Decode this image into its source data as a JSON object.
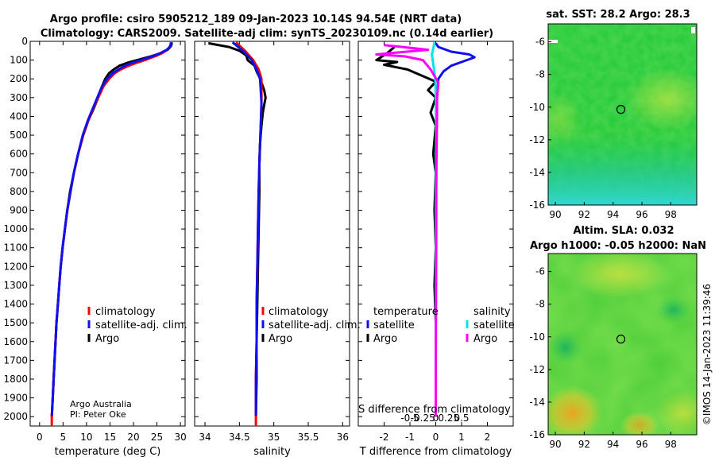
{
  "titles": {
    "line1": "Argo profile: csiro 5905212_189 09-Jan-2023 10.14S 94.54E (NRT data)",
    "line2": "Climatology: CARS2009. Satellite-adj clim: synTS_20230109.nc (0.14d earlier)"
  },
  "credit": {
    "line1": "Argo Australia",
    "line2": "PI: Peter Oke"
  },
  "watermark": "©IMOS 14-Jan-2023 11:39:46",
  "colors": {
    "climatology": "#ff0000",
    "satellite": "#1010ee",
    "argo": "#000000",
    "sat_sal": "#00e5e5",
    "argo_sal": "#ff00ff"
  },
  "chart_data": [
    {
      "type": "line",
      "id": "temperature",
      "xlabel": "temperature (deg C)",
      "ylabel": "",
      "xlim": [
        -2,
        31
      ],
      "ylim": [
        0,
        2050
      ],
      "xticks": [
        0,
        5,
        10,
        15,
        20,
        25,
        30
      ],
      "xtick_labels": [
        "0",
        "5",
        "10",
        "15",
        "20",
        "25",
        "30"
      ],
      "yticks": [
        0,
        100,
        200,
        300,
        400,
        500,
        600,
        700,
        800,
        900,
        1000,
        1100,
        1200,
        1300,
        1400,
        1500,
        1600,
        1700,
        1800,
        1900,
        2000
      ],
      "ytick_labels": [
        "0",
        "100",
        "200",
        "300",
        "400",
        "500",
        "600",
        "700",
        "800",
        "900",
        "1000",
        "1100",
        "1200",
        "1300",
        "1400",
        "1500",
        "1600",
        "1700",
        "1800",
        "1900",
        "2000"
      ],
      "legend": [
        "climatology",
        "satellite-adj. clim.",
        "Argo"
      ],
      "series": [
        {
          "name": "Argo",
          "color": "#000000",
          "points": [
            [
              28.2,
              5
            ],
            [
              28.0,
              25
            ],
            [
              27.3,
              45
            ],
            [
              26.0,
              62
            ],
            [
              24.0,
              78
            ],
            [
              21.5,
              95
            ],
            [
              19.0,
              112
            ],
            [
              17.0,
              130
            ],
            [
              15.8,
              150
            ],
            [
              14.8,
              170
            ],
            [
              14.0,
              200
            ],
            [
              13.3,
              240
            ],
            [
              12.5,
              300
            ],
            [
              11.5,
              360
            ],
            [
              10.4,
              420
            ],
            [
              9.3,
              500
            ],
            [
              8.2,
              600
            ],
            [
              7.3,
              700
            ],
            [
              6.5,
              800
            ],
            [
              5.9,
              900
            ],
            [
              5.4,
              1000
            ],
            [
              4.9,
              1100
            ],
            [
              4.5,
              1200
            ],
            [
              4.2,
              1300
            ],
            [
              3.9,
              1400
            ],
            [
              3.6,
              1500
            ],
            [
              3.4,
              1600
            ],
            [
              3.2,
              1700
            ],
            [
              3.0,
              1800
            ],
            [
              2.8,
              1900
            ],
            [
              2.6,
              2000
            ]
          ]
        },
        {
          "name": "climatology",
          "color": "#ff0000",
          "points": [
            [
              28.0,
              5
            ],
            [
              27.8,
              25
            ],
            [
              27.2,
              45
            ],
            [
              26.2,
              62
            ],
            [
              24.8,
              78
            ],
            [
              23.0,
              95
            ],
            [
              21.0,
              112
            ],
            [
              19.0,
              130
            ],
            [
              17.3,
              150
            ],
            [
              16.0,
              170
            ],
            [
              14.8,
              200
            ],
            [
              13.6,
              240
            ],
            [
              12.5,
              300
            ],
            [
              11.4,
              360
            ],
            [
              10.4,
              420
            ],
            [
              9.3,
              500
            ],
            [
              8.2,
              600
            ],
            [
              7.3,
              700
            ],
            [
              6.6,
              800
            ],
            [
              5.9,
              900
            ],
            [
              5.4,
              1000
            ],
            [
              4.9,
              1100
            ],
            [
              4.5,
              1200
            ],
            [
              4.2,
              1300
            ],
            [
              3.9,
              1400
            ],
            [
              3.6,
              1500
            ],
            [
              3.4,
              1600
            ],
            [
              3.2,
              1700
            ],
            [
              3.0,
              1800
            ],
            [
              2.8,
              1900
            ],
            [
              2.6,
              2000
            ]
          ]
        },
        {
          "name": "satellite-adj. clim.",
          "color": "#1010ee",
          "points": [
            [
              28.1,
              5
            ],
            [
              27.9,
              25
            ],
            [
              27.1,
              45
            ],
            [
              25.8,
              62
            ],
            [
              24.2,
              78
            ],
            [
              22.2,
              95
            ],
            [
              20.0,
              112
            ],
            [
              18.2,
              130
            ],
            [
              16.8,
              150
            ],
            [
              15.6,
              170
            ],
            [
              14.4,
              200
            ],
            [
              13.3,
              240
            ],
            [
              12.3,
              300
            ],
            [
              11.3,
              360
            ],
            [
              10.3,
              420
            ],
            [
              9.2,
              500
            ],
            [
              8.2,
              600
            ],
            [
              7.3,
              700
            ],
            [
              6.6,
              800
            ],
            [
              5.9,
              900
            ],
            [
              5.4,
              1000
            ],
            [
              4.9,
              1100
            ],
            [
              4.5,
              1200
            ],
            [
              4.2,
              1300
            ],
            [
              3.9,
              1400
            ],
            [
              3.6,
              1500
            ],
            [
              3.4,
              1600
            ],
            [
              3.2,
              1700
            ],
            [
              3.0,
              1800
            ],
            [
              2.8,
              1900
            ],
            [
              2.6,
              2000
            ]
          ]
        }
      ]
    },
    {
      "type": "line",
      "id": "salinity",
      "xlabel": "salinity",
      "xlim": [
        33.85,
        36.1
      ],
      "ylim": [
        0,
        2050
      ],
      "xticks": [
        34,
        34.5,
        35,
        35.5,
        36
      ],
      "xtick_labels": [
        "34",
        "34.5",
        "35",
        "35.5",
        "36"
      ],
      "legend": [
        "climatology",
        "satellite-adj. clim.",
        "Argo"
      ],
      "series": [
        {
          "name": "Argo",
          "color": "#000000",
          "points": [
            [
              34.05,
              10
            ],
            [
              34.35,
              30
            ],
            [
              34.5,
              50
            ],
            [
              34.6,
              75
            ],
            [
              34.62,
              100
            ],
            [
              34.72,
              130
            ],
            [
              34.75,
              160
            ],
            [
              34.79,
              190
            ],
            [
              34.82,
              220
            ],
            [
              34.86,
              260
            ],
            [
              34.88,
              300
            ],
            [
              34.86,
              340
            ],
            [
              34.84,
              380
            ],
            [
              34.82,
              450
            ],
            [
              34.8,
              550
            ],
            [
              34.79,
              650
            ],
            [
              34.79,
              800
            ],
            [
              34.78,
              1000
            ],
            [
              34.77,
              1200
            ],
            [
              34.76,
              1400
            ],
            [
              34.75,
              1600
            ],
            [
              34.75,
              1800
            ],
            [
              34.74,
              2000
            ]
          ]
        },
        {
          "name": "climatology",
          "color": "#ff0000",
          "points": [
            [
              34.45,
              5
            ],
            [
              34.58,
              50
            ],
            [
              34.7,
              100
            ],
            [
              34.78,
              150
            ],
            [
              34.82,
              200
            ],
            [
              34.82,
              260
            ],
            [
              34.82,
              330
            ],
            [
              34.81,
              450
            ],
            [
              34.8,
              550
            ],
            [
              34.79,
              650
            ],
            [
              34.78,
              800
            ],
            [
              34.77,
              1000
            ],
            [
              34.76,
              1200
            ],
            [
              34.75,
              1400
            ],
            [
              34.75,
              1600
            ],
            [
              34.74,
              1800
            ],
            [
              34.74,
              2000
            ]
          ]
        },
        {
          "name": "satellite-adj. clim.",
          "color": "#1010ee",
          "points": [
            [
              34.4,
              5
            ],
            [
              34.55,
              50
            ],
            [
              34.68,
              100
            ],
            [
              34.75,
              150
            ],
            [
              34.8,
              200
            ],
            [
              34.81,
              260
            ],
            [
              34.82,
              330
            ],
            [
              34.81,
              450
            ],
            [
              34.8,
              550
            ],
            [
              34.79,
              650
            ],
            [
              34.78,
              800
            ],
            [
              34.77,
              1000
            ],
            [
              34.76,
              1200
            ],
            [
              34.75,
              1400
            ],
            [
              34.75,
              1600
            ],
            [
              34.74,
              1800
            ],
            [
              34.74,
              2000
            ]
          ]
        }
      ]
    },
    {
      "type": "line",
      "id": "difference",
      "xlabel": "T difference from climatology",
      "xlabel2": "S difference from climatology",
      "xlim": [
        -3,
        3
      ],
      "ylim": [
        0,
        2050
      ],
      "xticks": [
        -2,
        -1,
        0,
        1,
        2
      ],
      "xtick_labels": [
        "-2",
        "-1",
        "0",
        "1",
        "2"
      ],
      "s_ticks": [
        -0.5,
        -0.25,
        0,
        0.25,
        0.5
      ],
      "s_tick_labels": [
        "-0.5",
        "-0.25",
        "0",
        "0.25",
        "0.5"
      ],
      "legend_headers": [
        "temperature",
        "salinity"
      ],
      "legend": [
        "satellite",
        "Argo",
        "satellite",
        "Argo"
      ],
      "series": [
        {
          "name": "T satellite",
          "color": "#1010ee",
          "points": [
            [
              0,
              10
            ],
            [
              0.1,
              30
            ],
            [
              0.6,
              55
            ],
            [
              1.3,
              70
            ],
            [
              1.5,
              85
            ],
            [
              1.0,
              110
            ],
            [
              0.6,
              130
            ],
            [
              0.3,
              160
            ],
            [
              0.1,
              200
            ],
            [
              0.05,
              300
            ],
            [
              0,
              500
            ],
            [
              0,
              1000
            ],
            [
              0,
              2000
            ]
          ]
        },
        {
          "name": "T Argo",
          "color": "#000000",
          "points": [
            [
              -1.6,
              30
            ],
            [
              -1.9,
              65
            ],
            [
              -2.3,
              100
            ],
            [
              -1.5,
              110
            ],
            [
              -2.0,
              125
            ],
            [
              -1.1,
              150
            ],
            [
              -0.5,
              185
            ],
            [
              0,
              215
            ],
            [
              -0.3,
              260
            ],
            [
              0,
              300
            ],
            [
              -0.2,
              380
            ],
            [
              0,
              450
            ],
            [
              -0.1,
              600
            ],
            [
              0,
              700
            ],
            [
              -0.05,
              900
            ],
            [
              0,
              1100
            ],
            [
              -0.05,
              1300
            ],
            [
              0,
              1500
            ],
            [
              0,
              1700
            ],
            [
              0,
              1900
            ],
            [
              0,
              2000
            ]
          ]
        },
        {
          "name": "S satellite",
          "color": "#00e5e5",
          "points": [
            [
              -0.05,
              5
            ],
            [
              -0.1,
              40
            ],
            [
              -0.15,
              70
            ],
            [
              -0.1,
              120
            ],
            [
              -0.02,
              200
            ],
            [
              0,
              300
            ],
            [
              0.02,
              500
            ],
            [
              0,
              800
            ],
            [
              0,
              1200
            ],
            [
              0,
              1600
            ],
            [
              0,
              2000
            ]
          ]
        },
        {
          "name": "S Argo",
          "color": "#ff00ff",
          "points": [
            [
              -2.0,
              20
            ],
            [
              -0.3,
              45
            ],
            [
              -2.3,
              70
            ],
            [
              -1.2,
              80
            ],
            [
              -0.5,
              100
            ],
            [
              -0.2,
              150
            ],
            [
              0.1,
              220
            ],
            [
              0.05,
              300
            ],
            [
              0.05,
              400
            ],
            [
              0.03,
              600
            ],
            [
              0.02,
              800
            ],
            [
              0.02,
              1000
            ],
            [
              0.01,
              1400
            ],
            [
              0,
              1800
            ],
            [
              0,
              2000
            ]
          ]
        }
      ]
    },
    {
      "type": "heatmap",
      "id": "sst-map",
      "title": "sat. SST: 28.2 Argo: 28.3",
      "xlim": [
        89.5,
        99.8
      ],
      "ylim": [
        -16,
        -4.9
      ],
      "xticks": [
        90,
        92,
        94,
        96,
        98
      ],
      "xtick_labels": [
        "90",
        "92",
        "94",
        "96",
        "98"
      ],
      "yticks": [
        -6,
        -8,
        -10,
        -12,
        -14,
        -16
      ],
      "ytick_labels": [
        "-6",
        "-8",
        "-10",
        "-12",
        "-14",
        "-16"
      ],
      "marker": [
        94.54,
        -10.14
      ]
    },
    {
      "type": "heatmap",
      "id": "sla-map",
      "title": "Altim. SLA: 0.032",
      "subtitle": "Argo h1000: -0.05 h2000: NaN",
      "xlim": [
        89.5,
        99.8
      ],
      "ylim": [
        -16,
        -4.9
      ],
      "xticks": [
        90,
        92,
        94,
        96,
        98
      ],
      "xtick_labels": [
        "90",
        "92",
        "94",
        "96",
        "98"
      ],
      "yticks": [
        -6,
        -8,
        -10,
        -12,
        -14,
        -16
      ],
      "ytick_labels": [
        "-6",
        "-8",
        "-10",
        "-12",
        "-14",
        "-16"
      ],
      "marker": [
        94.54,
        -10.14
      ]
    }
  ]
}
